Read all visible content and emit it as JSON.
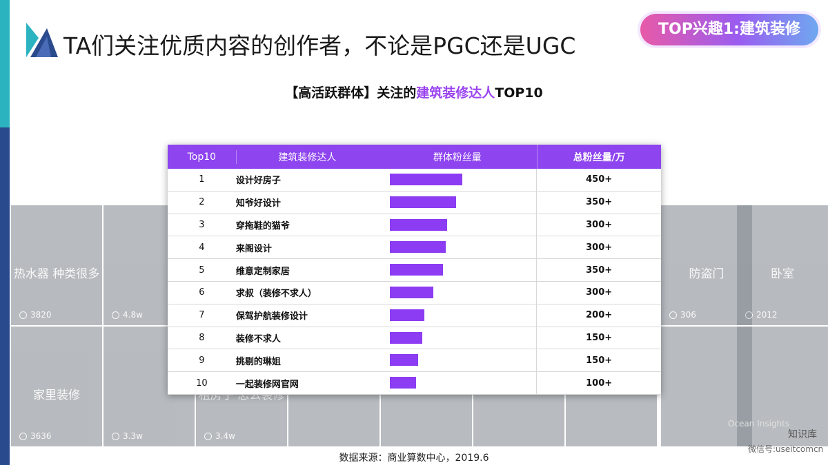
{
  "header": {
    "title": "TA们关注优质内容的创作者，不论是PGC还是UGC",
    "badge": "TOP兴趣1:建筑装修"
  },
  "subtitle": {
    "prefix": "【高活跃群体】关注的",
    "highlight": "建筑装修达人",
    "suffix": "TOP10"
  },
  "table": {
    "columns": [
      "Top10",
      "建筑装修达人",
      "群体粉丝量",
      "总粉丝量/万"
    ],
    "bar_color": "#8c3cf2",
    "rows": [
      {
        "rank": "1",
        "name": "设计好房子",
        "group_fans": 100,
        "total_fans": "450+"
      },
      {
        "rank": "2",
        "name": "知爷好设计",
        "group_fans": 92,
        "total_fans": "350+"
      },
      {
        "rank": "3",
        "name": "穿拖鞋的猫爷",
        "group_fans": 79,
        "total_fans": "300+"
      },
      {
        "rank": "4",
        "name": "来阁设计",
        "group_fans": 78,
        "total_fans": "300+"
      },
      {
        "rank": "5",
        "name": "维意定制家居",
        "group_fans": 74,
        "total_fans": "350+"
      },
      {
        "rank": "6",
        "name": "求叔（装修不求人）",
        "group_fans": 60,
        "total_fans": "300+"
      },
      {
        "rank": "7",
        "name": "保驾护航装修设计",
        "group_fans": 48,
        "total_fans": "200+"
      },
      {
        "rank": "8",
        "name": "装修不求人",
        "group_fans": 45,
        "total_fans": "150+"
      },
      {
        "rank": "9",
        "name": "挑剔的琳姐",
        "group_fans": 39,
        "total_fans": "150+"
      },
      {
        "rank": "10",
        "name": "一起装修网官网",
        "group_fans": 37,
        "total_fans": "100+"
      }
    ]
  },
  "tiles": [
    {
      "caption": "热水器 种类很多",
      "likes": "3820"
    },
    {
      "likes": "4.8w"
    },
    {
      "caption": "家里装修",
      "likes": "3636"
    },
    {
      "likes": "3.3w"
    },
    {
      "caption": "租房子 怎么装修",
      "likes": "3.4w"
    },
    {
      "caption": "防盗门",
      "likes": "306"
    },
    {
      "caption": "卧室",
      "likes": "2012"
    }
  ],
  "footer": {
    "source": "数据来源：商业算数中心，2019.6"
  },
  "watermark": {
    "brand": "Ocean Insights",
    "name": "知识库",
    "wechat": "微信号:useitcomcn"
  }
}
